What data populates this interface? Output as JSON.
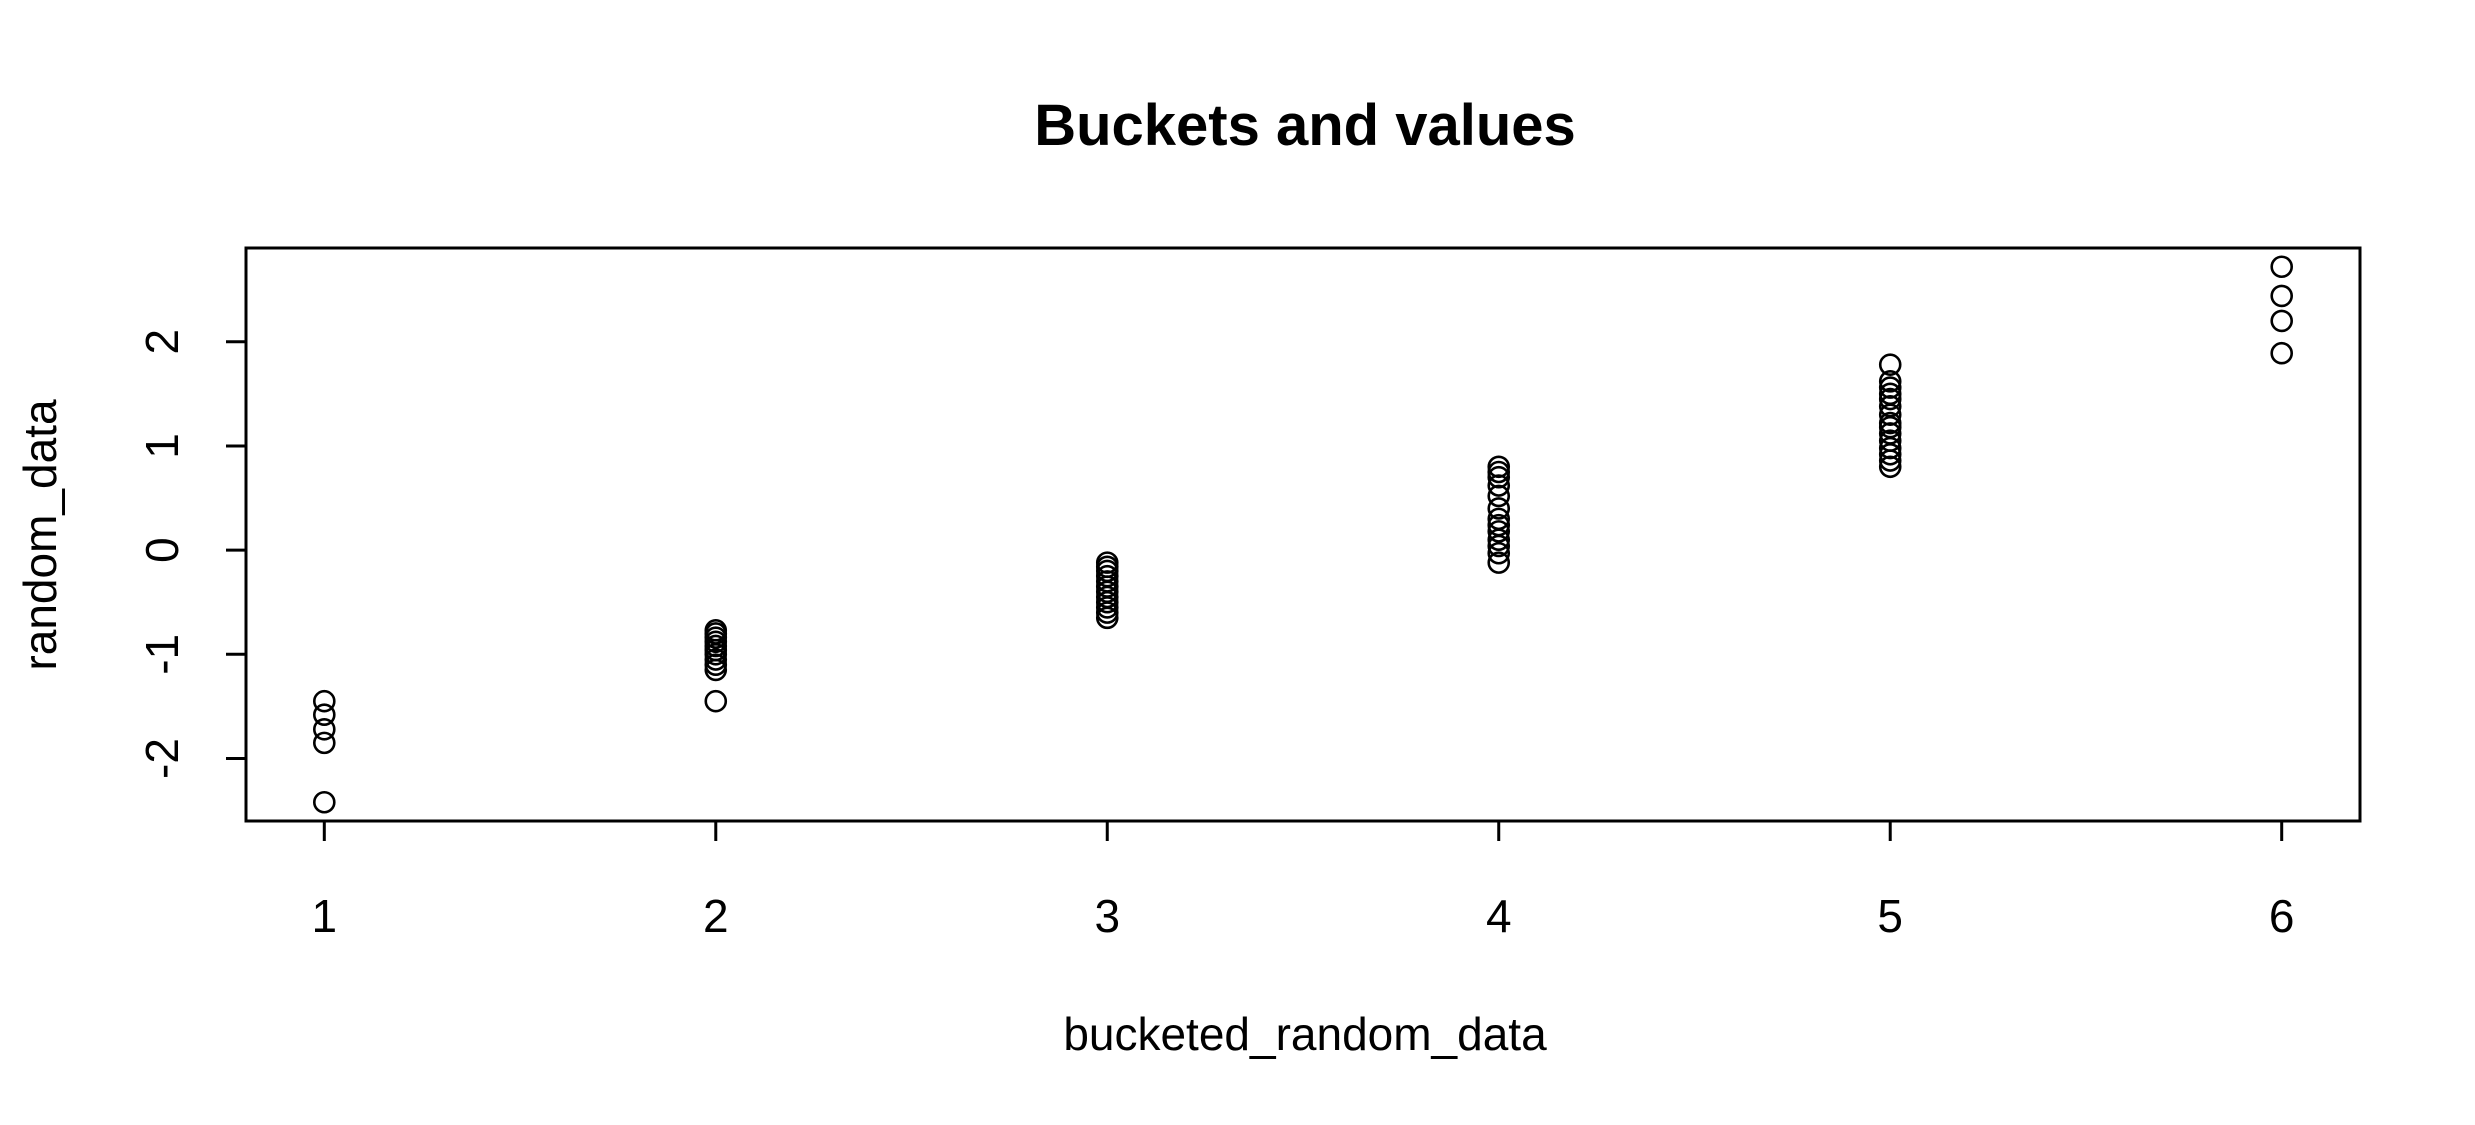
{
  "chart_data": {
    "type": "scatter",
    "title": "Buckets and values",
    "xlabel": "bucketed_random_data",
    "ylabel": "random_data",
    "xlim": [
      0.8,
      6.2
    ],
    "ylim": [
      -2.6,
      2.9
    ],
    "x_ticks": [
      "1",
      "2",
      "3",
      "4",
      "5",
      "6"
    ],
    "y_ticks": [
      "-2",
      "-1",
      "0",
      "1",
      "2"
    ],
    "grid": false,
    "legend": "none",
    "marker": "open circle",
    "colors": {
      "points": "#000000",
      "axes": "#000000",
      "background": "#ffffff"
    },
    "points": [
      {
        "x": 1,
        "y": -1.45
      },
      {
        "x": 1,
        "y": -1.58
      },
      {
        "x": 1,
        "y": -1.72
      },
      {
        "x": 1,
        "y": -1.85
      },
      {
        "x": 1,
        "y": -2.42
      },
      {
        "x": 2,
        "y": -0.77
      },
      {
        "x": 2,
        "y": -0.8
      },
      {
        "x": 2,
        "y": -0.84
      },
      {
        "x": 2,
        "y": -0.88
      },
      {
        "x": 2,
        "y": -0.92
      },
      {
        "x": 2,
        "y": -0.96
      },
      {
        "x": 2,
        "y": -1.0
      },
      {
        "x": 2,
        "y": -1.05
      },
      {
        "x": 2,
        "y": -1.1
      },
      {
        "x": 2,
        "y": -1.15
      },
      {
        "x": 2,
        "y": -1.45
      },
      {
        "x": 3,
        "y": -0.12
      },
      {
        "x": 3,
        "y": -0.16
      },
      {
        "x": 3,
        "y": -0.2
      },
      {
        "x": 3,
        "y": -0.25
      },
      {
        "x": 3,
        "y": -0.3
      },
      {
        "x": 3,
        "y": -0.35
      },
      {
        "x": 3,
        "y": -0.4
      },
      {
        "x": 3,
        "y": -0.45
      },
      {
        "x": 3,
        "y": -0.5
      },
      {
        "x": 3,
        "y": -0.55
      },
      {
        "x": 3,
        "y": -0.6
      },
      {
        "x": 3,
        "y": -0.65
      },
      {
        "x": 4,
        "y": 0.8
      },
      {
        "x": 4,
        "y": 0.75
      },
      {
        "x": 4,
        "y": 0.7
      },
      {
        "x": 4,
        "y": 0.62
      },
      {
        "x": 4,
        "y": 0.52
      },
      {
        "x": 4,
        "y": 0.4
      },
      {
        "x": 4,
        "y": 0.3
      },
      {
        "x": 4,
        "y": 0.24
      },
      {
        "x": 4,
        "y": 0.18
      },
      {
        "x": 4,
        "y": 0.1
      },
      {
        "x": 4,
        "y": 0.04
      },
      {
        "x": 4,
        "y": -0.03
      },
      {
        "x": 4,
        "y": -0.12
      },
      {
        "x": 5,
        "y": 1.78
      },
      {
        "x": 5,
        "y": 1.62
      },
      {
        "x": 5,
        "y": 1.56
      },
      {
        "x": 5,
        "y": 1.5
      },
      {
        "x": 5,
        "y": 1.45
      },
      {
        "x": 5,
        "y": 1.38
      },
      {
        "x": 5,
        "y": 1.3
      },
      {
        "x": 5,
        "y": 1.22
      },
      {
        "x": 5,
        "y": 1.18
      },
      {
        "x": 5,
        "y": 1.12
      },
      {
        "x": 5,
        "y": 1.05
      },
      {
        "x": 5,
        "y": 0.98
      },
      {
        "x": 5,
        "y": 0.92
      },
      {
        "x": 5,
        "y": 0.86
      },
      {
        "x": 5,
        "y": 0.8
      },
      {
        "x": 6,
        "y": 2.72
      },
      {
        "x": 6,
        "y": 2.44
      },
      {
        "x": 6,
        "y": 2.2
      },
      {
        "x": 6,
        "y": 1.89
      }
    ]
  }
}
